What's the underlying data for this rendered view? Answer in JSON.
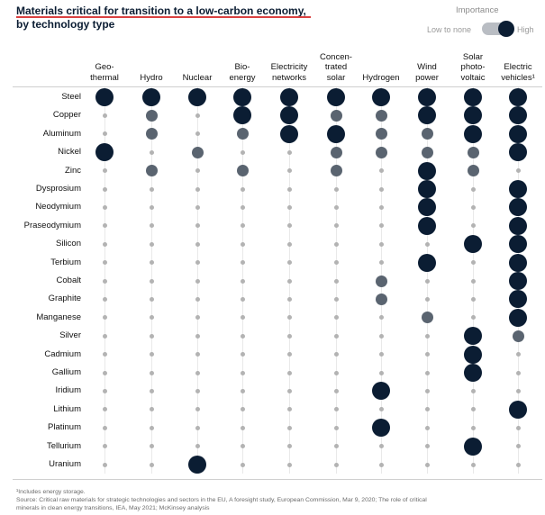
{
  "title_line1": "Materials critical for transition to a low-carbon economy,",
  "title_line2": "by technology type",
  "legend": {
    "title": "Importance",
    "low": "Low to none",
    "high": "High"
  },
  "footnote1": "¹Includes energy storage.",
  "footnote2": "Source: Critical raw materials for strategic technologies and sectors in the EU, A foresight study, European Commission, Mar 9, 2020; The role of critical",
  "footnote3": "minerals in clean energy transitions, IEA, May 2021; McKinsey analysis",
  "colors": {
    "high": "#0b1d33",
    "medium": "#5a6470",
    "low": "#b3b3b3"
  },
  "chart_data": {
    "type": "heatmap",
    "encoding": "dot size/color: 2 = high, 1 = medium, 0 = low to none",
    "columns": [
      "Geo-thermal",
      "Hydro",
      "Nuclear",
      "Bio-energy",
      "Electricity networks",
      "Concen-trated solar",
      "Hydrogen",
      "Wind power",
      "Solar photo-voltaic",
      "Electric vehicles¹"
    ],
    "column_lines": [
      [
        "Geo-",
        "thermal"
      ],
      [
        "Hydro"
      ],
      [
        "Nuclear"
      ],
      [
        "Bio-",
        "energy"
      ],
      [
        "Electricity",
        "networks"
      ],
      [
        "Concen-",
        "trated",
        "solar"
      ],
      [
        "Hydrogen"
      ],
      [
        "Wind",
        "power"
      ],
      [
        "Solar",
        "photo-",
        "voltaic"
      ],
      [
        "Electric",
        "vehicles¹"
      ]
    ],
    "rows": [
      {
        "material": "Steel",
        "values": [
          2,
          2,
          2,
          2,
          2,
          2,
          2,
          2,
          2,
          2
        ]
      },
      {
        "material": "Copper",
        "values": [
          0,
          1,
          0,
          2,
          2,
          1,
          1,
          2,
          2,
          2
        ]
      },
      {
        "material": "Aluminum",
        "values": [
          0,
          1,
          0,
          1,
          2,
          2,
          1,
          1,
          2,
          2
        ]
      },
      {
        "material": "Nickel",
        "values": [
          2,
          0,
          1,
          0,
          0,
          1,
          1,
          1,
          1,
          2
        ]
      },
      {
        "material": "Zinc",
        "values": [
          0,
          1,
          0,
          1,
          0,
          1,
          0,
          2,
          1,
          0
        ]
      },
      {
        "material": "Dysprosium",
        "values": [
          0,
          0,
          0,
          0,
          0,
          0,
          0,
          2,
          0,
          2
        ]
      },
      {
        "material": "Neodymium",
        "values": [
          0,
          0,
          0,
          0,
          0,
          0,
          0,
          2,
          0,
          2
        ]
      },
      {
        "material": "Praseodymium",
        "values": [
          0,
          0,
          0,
          0,
          0,
          0,
          0,
          2,
          0,
          2
        ]
      },
      {
        "material": "Silicon",
        "values": [
          0,
          0,
          0,
          0,
          0,
          0,
          0,
          0,
          2,
          2
        ]
      },
      {
        "material": "Terbium",
        "values": [
          0,
          0,
          0,
          0,
          0,
          0,
          0,
          2,
          0,
          2
        ]
      },
      {
        "material": "Cobalt",
        "values": [
          0,
          0,
          0,
          0,
          0,
          0,
          1,
          0,
          0,
          2
        ]
      },
      {
        "material": "Graphite",
        "values": [
          0,
          0,
          0,
          0,
          0,
          0,
          1,
          0,
          0,
          2
        ]
      },
      {
        "material": "Manganese",
        "values": [
          0,
          0,
          0,
          0,
          0,
          0,
          0,
          1,
          0,
          2
        ]
      },
      {
        "material": "Silver",
        "values": [
          0,
          0,
          0,
          0,
          0,
          0,
          0,
          0,
          2,
          1
        ]
      },
      {
        "material": "Cadmium",
        "values": [
          0,
          0,
          0,
          0,
          0,
          0,
          0,
          0,
          2,
          0
        ]
      },
      {
        "material": "Gallium",
        "values": [
          0,
          0,
          0,
          0,
          0,
          0,
          0,
          0,
          2,
          0
        ]
      },
      {
        "material": "Iridium",
        "values": [
          0,
          0,
          0,
          0,
          0,
          0,
          2,
          0,
          0,
          0
        ]
      },
      {
        "material": "Lithium",
        "values": [
          0,
          0,
          0,
          0,
          0,
          0,
          0,
          0,
          0,
          2
        ]
      },
      {
        "material": "Platinum",
        "values": [
          0,
          0,
          0,
          0,
          0,
          0,
          2,
          0,
          0,
          0
        ]
      },
      {
        "material": "Tellurium",
        "values": [
          0,
          0,
          0,
          0,
          0,
          0,
          0,
          0,
          2,
          0
        ]
      },
      {
        "material": "Uranium",
        "values": [
          0,
          0,
          2,
          0,
          0,
          0,
          0,
          0,
          0,
          0
        ]
      }
    ]
  }
}
